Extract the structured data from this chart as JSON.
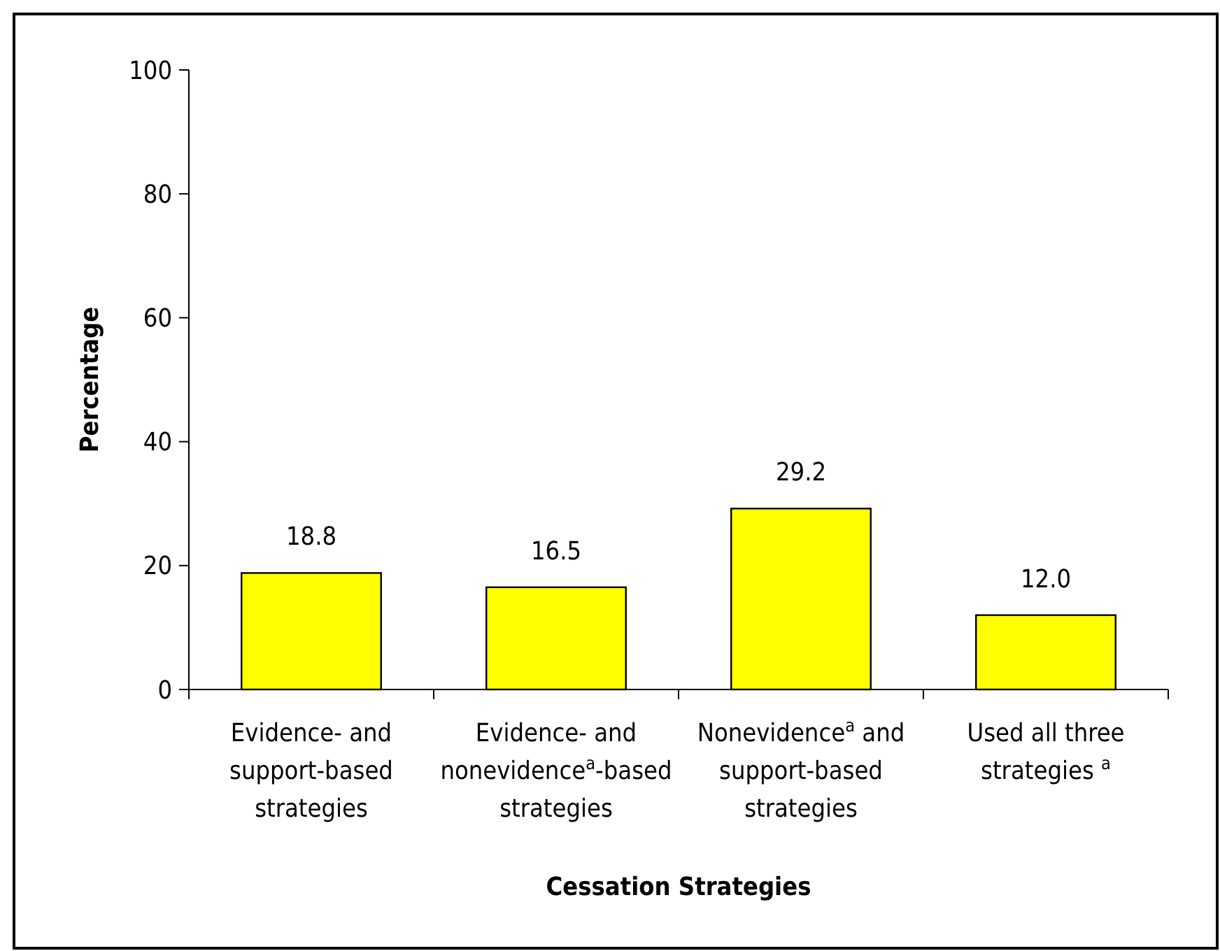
{
  "chart_data": {
    "type": "bar",
    "xlabel": "Cessation Strategies",
    "ylabel": "Percentage",
    "categories": [
      "Evidence- and\nsupport-based\nstrategies",
      "Evidence- and\nnonevidence$^{a}$-based\nstrategies",
      "Nonevidence$^{a}$ and\nsupport-based\nstrategies",
      "Used all three\nstrategies $^{a}$"
    ],
    "values": [
      18.8,
      16.5,
      29.2,
      12.0
    ],
    "value_labels": [
      "18.8",
      "16.5",
      "29.2",
      "12.0"
    ],
    "color": "#ffff00",
    "ylim": [
      0,
      100
    ],
    "yticks": [
      0,
      20,
      40,
      60,
      80,
      100
    ],
    "grid": false
  }
}
